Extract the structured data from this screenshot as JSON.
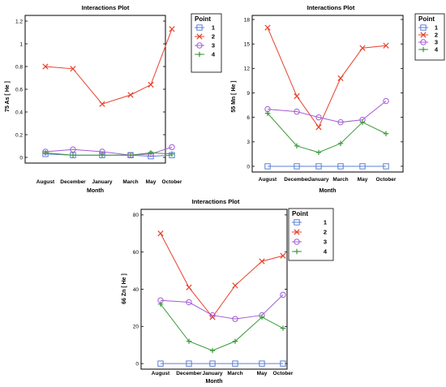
{
  "colors": {
    "s1": "#5b7fd6",
    "s2": "#e8402a",
    "s3": "#a45bd6",
    "s4": "#3a9a3a"
  },
  "chart_data": [
    {
      "type": "line",
      "title": "Interactions Plot",
      "xlabel": "Month",
      "ylabel": "75 As [ He ]",
      "categories": [
        "August",
        "December",
        "January",
        "March",
        "May",
        "October"
      ],
      "ylim": [
        -0.05,
        1.25
      ],
      "yticks": [
        0,
        0.2,
        0.4,
        0.6,
        0.8,
        1,
        1.2
      ],
      "ytick_labels": [
        "0",
        "0.2",
        "0.4",
        "0.6",
        "0.8",
        "1",
        "1.2"
      ],
      "legend_title": "Point",
      "legend_position": "top-right",
      "series": [
        {
          "name": "1",
          "marker": "square",
          "color": "s1",
          "values": [
            0.03,
            0.02,
            0.02,
            0.02,
            0.01,
            0.02
          ]
        },
        {
          "name": "2",
          "marker": "x",
          "color": "s2",
          "values": [
            0.8,
            0.78,
            0.47,
            0.55,
            0.64,
            1.13
          ]
        },
        {
          "name": "3",
          "marker": "circle",
          "color": "s3",
          "values": [
            0.05,
            0.07,
            0.05,
            0.02,
            0.03,
            0.09
          ]
        },
        {
          "name": "4",
          "marker": "plus",
          "color": "s4",
          "values": [
            0.04,
            0.02,
            0.02,
            0.02,
            0.04,
            0.03
          ]
        }
      ]
    },
    {
      "type": "line",
      "title": "Interactions Plot",
      "xlabel": "Month",
      "ylabel": "55 Mn [ He ]",
      "categories": [
        "August",
        "December",
        "January",
        "March",
        "May",
        "October"
      ],
      "ylim": [
        -0.7,
        18.5
      ],
      "yticks": [
        0,
        3,
        6,
        9,
        12,
        15,
        18
      ],
      "ytick_labels": [
        "0",
        "3",
        "6",
        "9",
        "12",
        "15",
        "18"
      ],
      "legend_title": "Point",
      "legend_position": "top-right",
      "series": [
        {
          "name": "1",
          "marker": "square",
          "color": "s1",
          "values": [
            0,
            0,
            0,
            0,
            0,
            0
          ]
        },
        {
          "name": "2",
          "marker": "x",
          "color": "s2",
          "values": [
            17.0,
            8.6,
            4.8,
            10.8,
            14.5,
            14.8
          ]
        },
        {
          "name": "3",
          "marker": "circle",
          "color": "s3",
          "values": [
            7.0,
            6.7,
            6.0,
            5.4,
            5.7,
            8.0
          ]
        },
        {
          "name": "4",
          "marker": "plus",
          "color": "s4",
          "values": [
            6.5,
            2.5,
            1.7,
            2.8,
            5.4,
            4.0
          ]
        }
      ]
    },
    {
      "type": "line",
      "title": "Interactions Plot",
      "xlabel": "Month",
      "ylabel": "66 Zn [ He ]",
      "categories": [
        "August",
        "December",
        "January",
        "March",
        "May",
        "October"
      ],
      "ylim": [
        -3,
        83
      ],
      "yticks": [
        0,
        20,
        40,
        60,
        80
      ],
      "ytick_labels": [
        "0",
        "20",
        "40",
        "60",
        "80"
      ],
      "legend_title": "Point",
      "legend_position": "top-right",
      "series": [
        {
          "name": "1",
          "marker": "square",
          "color": "s1",
          "values": [
            0,
            0,
            0,
            0,
            0,
            0
          ]
        },
        {
          "name": "2",
          "marker": "x",
          "color": "s2",
          "values": [
            70,
            41,
            25,
            42,
            55,
            58
          ]
        },
        {
          "name": "3",
          "marker": "circle",
          "color": "s3",
          "values": [
            34,
            33,
            26,
            24,
            26,
            37
          ]
        },
        {
          "name": "4",
          "marker": "plus",
          "color": "s4",
          "values": [
            32,
            12,
            7,
            12,
            25,
            19
          ]
        }
      ]
    }
  ]
}
